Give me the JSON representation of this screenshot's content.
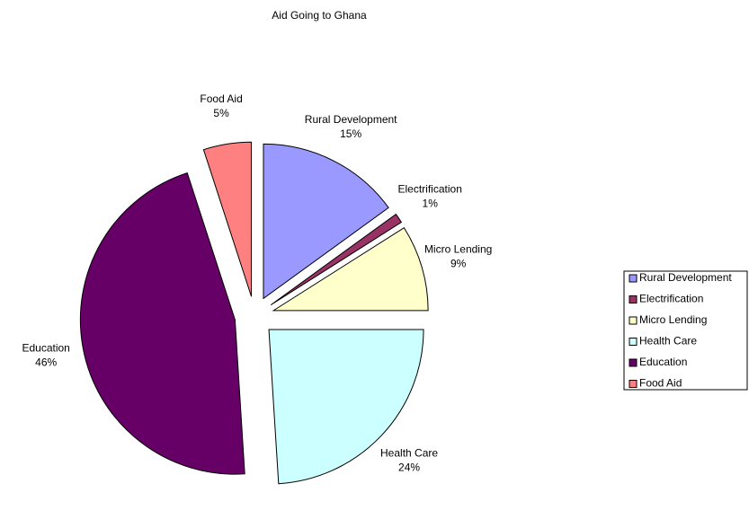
{
  "chart_data": {
    "type": "pie",
    "title": "Aid Going to Ghana",
    "categories": [
      "Rural Development",
      "Electrification",
      "Micro Lending",
      "Health Care",
      "Education",
      "Food Aid"
    ],
    "values": [
      15,
      1,
      9,
      24,
      46,
      5
    ],
    "value_labels": [
      "15%",
      "1%",
      "9%",
      "24%",
      "46%",
      "5%"
    ],
    "colors": [
      "#9999ff",
      "#993366",
      "#ffffcc",
      "#ccffff",
      "#660066",
      "#ff8080"
    ],
    "legend": "right"
  }
}
